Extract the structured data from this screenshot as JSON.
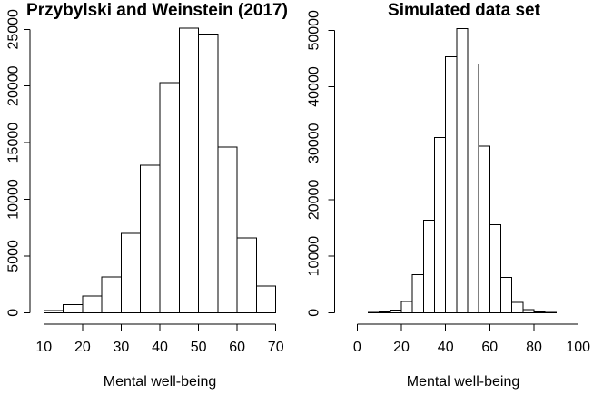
{
  "figure": {
    "background_color": "#ffffff",
    "line_color": "#000000",
    "bar_fill_color": "#ffffff"
  },
  "chart_data": [
    {
      "type": "bar",
      "subtype": "histogram",
      "title": "Przybylski and Weinstein (2017)",
      "xlabel": "Mental well-being",
      "ylabel": "",
      "bin_start": 10,
      "bin_width": 5,
      "counts": [
        200,
        700,
        1450,
        3150,
        7000,
        13000,
        20300,
        25100,
        24600,
        14600,
        6600,
        2350
      ],
      "x_ticks": [
        10,
        20,
        30,
        40,
        50,
        60,
        70
      ],
      "y_ticks": [
        0,
        5000,
        10000,
        15000,
        20000,
        25000
      ],
      "xlim": [
        10,
        70
      ],
      "ylim": [
        0,
        25100
      ],
      "grid": false,
      "legend": false
    },
    {
      "type": "bar",
      "subtype": "histogram",
      "title": "Simulated data set",
      "xlabel": "Mental well-being",
      "ylabel": "",
      "bin_start": 0,
      "bin_width": 5,
      "counts": [
        0,
        20,
        100,
        450,
        2000,
        6700,
        16400,
        31000,
        45300,
        50300,
        44000,
        29500,
        15600,
        6200,
        1800,
        500,
        150,
        20,
        0,
        0
      ],
      "x_ticks": [
        0,
        20,
        40,
        60,
        80,
        100
      ],
      "y_ticks": [
        0,
        10000,
        20000,
        30000,
        40000,
        50000
      ],
      "xlim": [
        0,
        100
      ],
      "ylim": [
        0,
        50300
      ],
      "grid": false,
      "legend": false
    }
  ]
}
